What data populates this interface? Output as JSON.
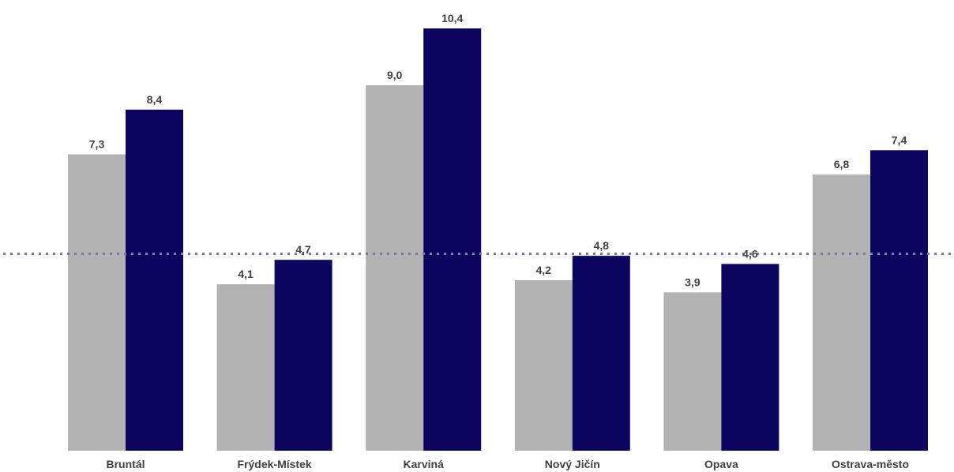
{
  "chart_data": {
    "type": "bar",
    "categories": [
      "Bruntál",
      "Frýdek-Místek",
      "Karviná",
      "Nový Jičín",
      "Opava",
      "Ostrava-město"
    ],
    "series": [
      {
        "values": [
          7.3,
          4.1,
          9.0,
          4.2,
          3.9,
          6.8
        ],
        "labels": [
          "7,3",
          "4,1",
          "9,0",
          "4,2",
          "3,9",
          "6,8"
        ],
        "color": "#b2b2b2"
      },
      {
        "values": [
          8.4,
          4.7,
          10.4,
          4.8,
          4.6,
          7.4
        ],
        "labels": [
          "8,4",
          "4,7",
          "10,4",
          "4,8",
          "4,6",
          "7,4"
        ],
        "color": "#0c0560"
      }
    ],
    "reference_line": {
      "value": 4.85,
      "color": "#7b78a8",
      "style": "dotted"
    },
    "ylim": [
      0,
      10.4
    ],
    "title": "",
    "xlabel": "",
    "ylabel": "",
    "grid": false,
    "legend": "none"
  }
}
